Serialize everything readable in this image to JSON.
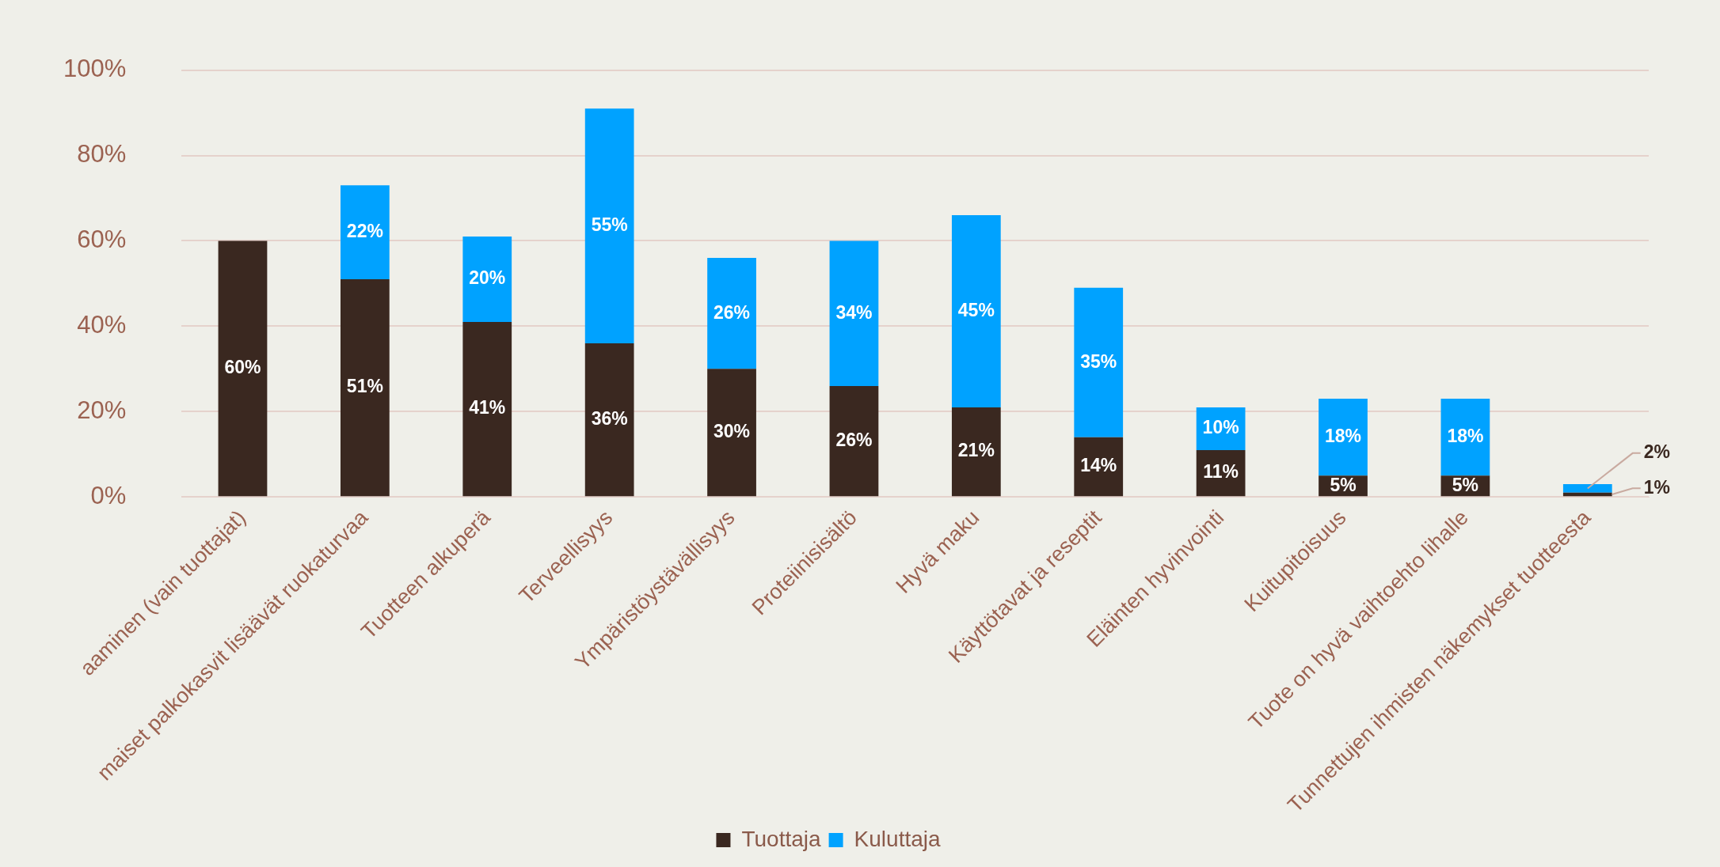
{
  "chart_data": {
    "type": "bar",
    "stacked": true,
    "categories": [
      "aaminen (vain tuottajat)",
      "maiset palkokasvit lisäävät ruokaturvaa",
      "Tuotteen alkuperä",
      "Terveellisyys",
      "Ympäristöystävällisyys",
      "Proteiinisisältö",
      "Hyvä maku",
      "Käyttötavat ja reseptit",
      "Eläinten hyvinvointi",
      "Kuitupitoisuus",
      "Tuote on hyvä vaihtoehto lihalle",
      "Tunnettujen ihmisten näkemykset tuotteesta"
    ],
    "series": [
      {
        "name": "Tuottaja",
        "color": "#3a2820",
        "values": [
          60,
          51,
          41,
          36,
          30,
          26,
          21,
          14,
          11,
          5,
          5,
          1
        ],
        "value_labels": [
          "60%",
          "51%",
          "41%",
          "36%",
          "30%",
          "26%",
          "21%",
          "14%",
          "11%",
          "5%",
          "5%",
          "1%"
        ]
      },
      {
        "name": "Kuluttaja",
        "color": "#00a2ff",
        "values": [
          null,
          22,
          20,
          55,
          26,
          34,
          45,
          35,
          10,
          18,
          18,
          2
        ],
        "value_labels": [
          null,
          "22%",
          "20%",
          "55%",
          "26%",
          "34%",
          "45%",
          "35%",
          "10%",
          "18%",
          "18%",
          "2%"
        ]
      }
    ],
    "ylim": [
      0,
      100
    ],
    "yticks": [
      {
        "value": 0,
        "label": "0%"
      },
      {
        "value": 20,
        "label": "20%"
      },
      {
        "value": 40,
        "label": "40%"
      },
      {
        "value": 60,
        "label": "60%"
      },
      {
        "value": 80,
        "label": "80%"
      },
      {
        "value": 100,
        "label": "100%"
      }
    ],
    "grid": "y",
    "legend": "bottom"
  }
}
